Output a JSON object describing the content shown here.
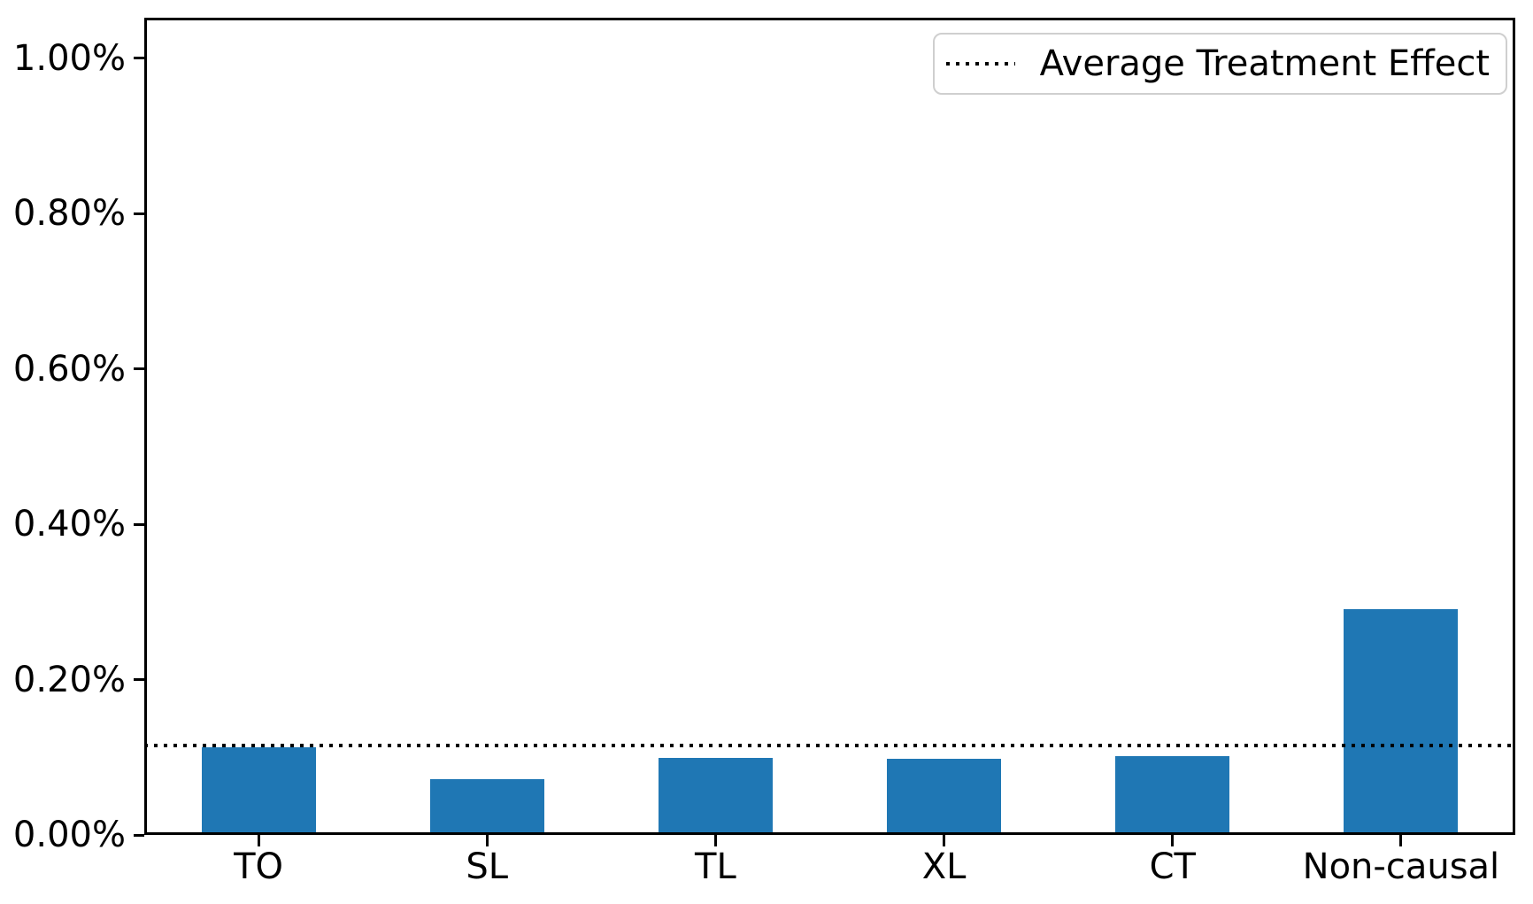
{
  "chart_data": {
    "type": "bar",
    "categories": [
      "TO",
      "SL",
      "TL",
      "XL",
      "CT",
      "Non-causal"
    ],
    "values": [
      0.113,
      0.072,
      0.099,
      0.098,
      0.101,
      0.291
    ],
    "value_units": "percent",
    "average_treatment_effect": 0.115,
    "title": "",
    "xlabel": "",
    "ylabel": "",
    "ylim": [
      0,
      1.052
    ],
    "yticks": {
      "values": [
        0.0,
        0.2,
        0.4,
        0.6,
        0.8,
        1.0
      ],
      "labels": [
        "0.00%",
        "0.20%",
        "0.40%",
        "0.60%",
        "0.80%",
        "1.00%"
      ]
    },
    "grid": false,
    "legend": {
      "position": "upper-right",
      "entries": [
        {
          "label": "Average Treatment Effect",
          "line_style": "dotted",
          "color": "#000000"
        }
      ]
    },
    "bar_color": "#1f77b4",
    "ate_line_color": "#000000",
    "axis_color": "#000000",
    "background_color": "#ffffff"
  }
}
